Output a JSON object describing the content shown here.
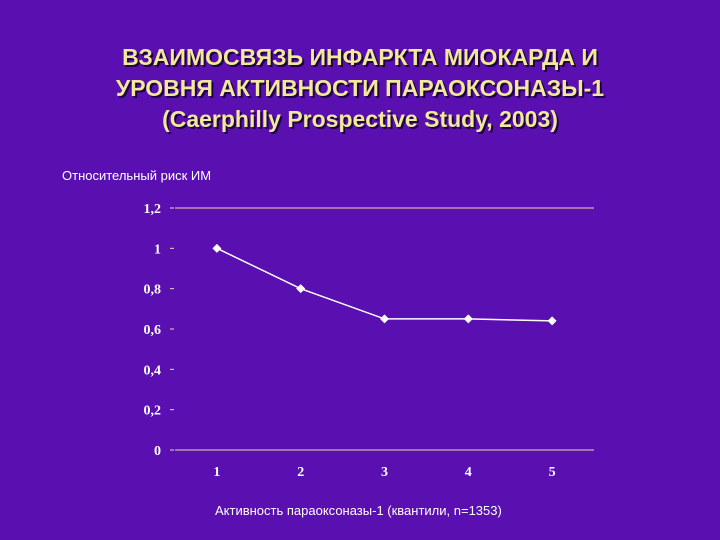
{
  "title": {
    "line1": "ВЗАИМОСВЯЗЬ ИНФАРКТА МИОКАРДА И",
    "line2": "УРОВНЯ АКТИВНОСТИ ПАРАОКСОНАЗЫ-1",
    "line3": "(Caerphilly Prospective Study, 2003)"
  },
  "chart_data": {
    "type": "line",
    "title": "ВЗАИМОСВЯЗЬ ИНФАРКТА МИОКАРДА И УРОВНЯ АКТИВНОСТИ ПАРАОКСОНАЗЫ-1 (Caerphilly Prospective Study, 2003)",
    "ylabel": "Относительный риск ИМ",
    "xlabel": "Активность параоксоназы-1 (квантили, n=1353)",
    "categories": [
      "1",
      "2",
      "3",
      "4",
      "5"
    ],
    "series": [
      {
        "values": [
          1.0,
          0.8,
          0.65,
          0.65,
          0.64
        ]
      }
    ],
    "ylim": [
      0,
      1.2
    ],
    "yticks": [
      "0",
      "0,2",
      "0,4",
      "0,6",
      "0,8",
      "1",
      "1,2"
    ],
    "grid": "top line only",
    "legend": "none",
    "colors": {
      "line": "#ffffff",
      "axis": "#e8d9b0",
      "tick_text": "#ffffff",
      "title": "#f2e89a",
      "background": "#5a0fb0"
    }
  }
}
